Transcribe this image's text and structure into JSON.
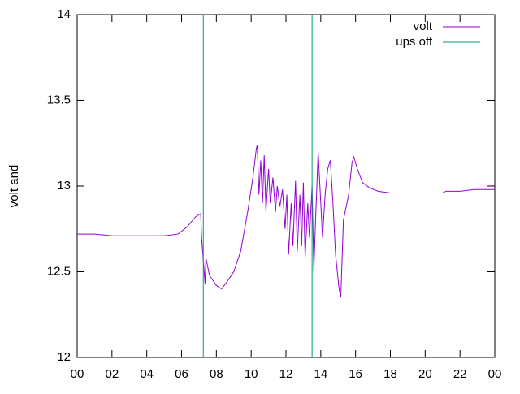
{
  "chart_data": {
    "type": "line",
    "ylabel": "volt and",
    "xlim": [
      0,
      24
    ],
    "xticks": [
      {
        "value": 0,
        "label": "00"
      },
      {
        "value": 2,
        "label": "02"
      },
      {
        "value": 4,
        "label": "04"
      },
      {
        "value": 6,
        "label": "06"
      },
      {
        "value": 8,
        "label": "08"
      },
      10,
      12,
      14,
      16,
      18,
      20,
      22,
      {
        "value": 24,
        "label": "00"
      }
    ],
    "ylim": [
      12,
      14
    ],
    "yticks": [
      12,
      12.5,
      13,
      13.5,
      14
    ],
    "legend": "top-right",
    "series": [
      {
        "name": "volt",
        "color": "#9400d3",
        "x": [
          0,
          1,
          2,
          3,
          4,
          5,
          5.8,
          6.3,
          6.8,
          7.1,
          7.15,
          7.3,
          7.35,
          7.4,
          7.6,
          8.0,
          8.3,
          8.6,
          9.0,
          9.4,
          9.8,
          10.1,
          10.3,
          10.35,
          10.45,
          10.55,
          10.65,
          10.75,
          10.85,
          11.0,
          11.1,
          11.25,
          11.4,
          11.5,
          11.65,
          11.8,
          11.95,
          12.05,
          12.15,
          12.3,
          12.4,
          12.55,
          12.65,
          12.8,
          12.9,
          13.0,
          13.1,
          13.25,
          13.35,
          13.5,
          13.6,
          13.7,
          13.85,
          14.0,
          14.1,
          14.25,
          14.4,
          14.55,
          14.7,
          14.85,
          15.05,
          15.15,
          15.3,
          15.6,
          15.8,
          15.9,
          16.1,
          16.4,
          16.8,
          17.3,
          18,
          20,
          21,
          21.2,
          22,
          22.8,
          24
        ],
        "values": [
          12.72,
          12.72,
          12.71,
          12.71,
          12.71,
          12.71,
          12.72,
          12.76,
          12.82,
          12.84,
          12.7,
          12.5,
          12.43,
          12.58,
          12.48,
          12.42,
          12.4,
          12.44,
          12.5,
          12.62,
          12.85,
          13.05,
          13.22,
          13.24,
          12.95,
          13.15,
          12.9,
          13.18,
          12.85,
          13.1,
          12.9,
          13.05,
          12.85,
          13.0,
          12.88,
          12.98,
          12.75,
          12.95,
          12.6,
          12.9,
          12.65,
          13.03,
          12.62,
          12.95,
          12.65,
          13.02,
          12.58,
          12.9,
          12.7,
          13.0,
          12.5,
          12.8,
          13.2,
          12.9,
          12.7,
          12.95,
          13.1,
          13.15,
          12.9,
          12.6,
          12.4,
          12.35,
          12.8,
          12.95,
          13.14,
          13.17,
          13.1,
          13.02,
          12.99,
          12.97,
          12.96,
          12.96,
          12.96,
          12.97,
          12.97,
          12.98,
          12.98
        ]
      },
      {
        "name": "ups off",
        "color": "#009e73",
        "x": [
          7.25,
          7.25,
          null,
          13.5,
          13.5
        ],
        "values": [
          14,
          12,
          null,
          12,
          14
        ]
      }
    ]
  }
}
